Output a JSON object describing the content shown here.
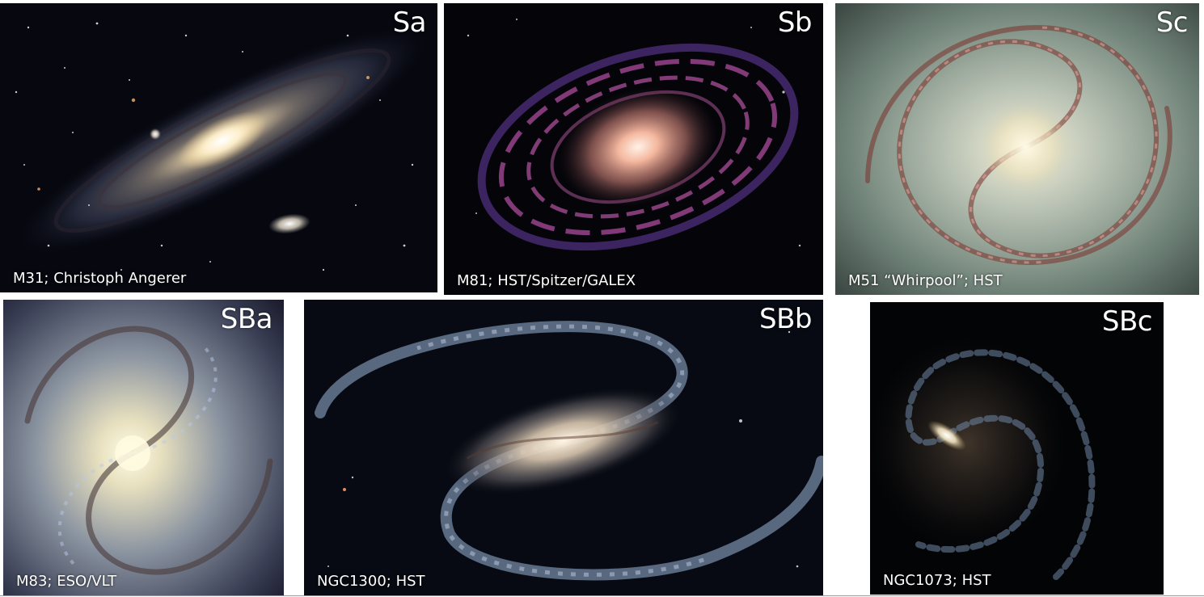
{
  "panels": [
    {
      "type": "Sa",
      "credit": "M31; Christoph Angerer"
    },
    {
      "type": "Sb",
      "credit": "M81; HST/Spitzer/GALEX"
    },
    {
      "type": "Sc",
      "credit": "M51 “Whirpool”; HST"
    },
    {
      "type": "SBa",
      "credit": "M83; ESO/VLT"
    },
    {
      "type": "SBb",
      "credit": "NGC1300; HST"
    },
    {
      "type": "SBc",
      "credit": "NGC1073; HST"
    }
  ]
}
